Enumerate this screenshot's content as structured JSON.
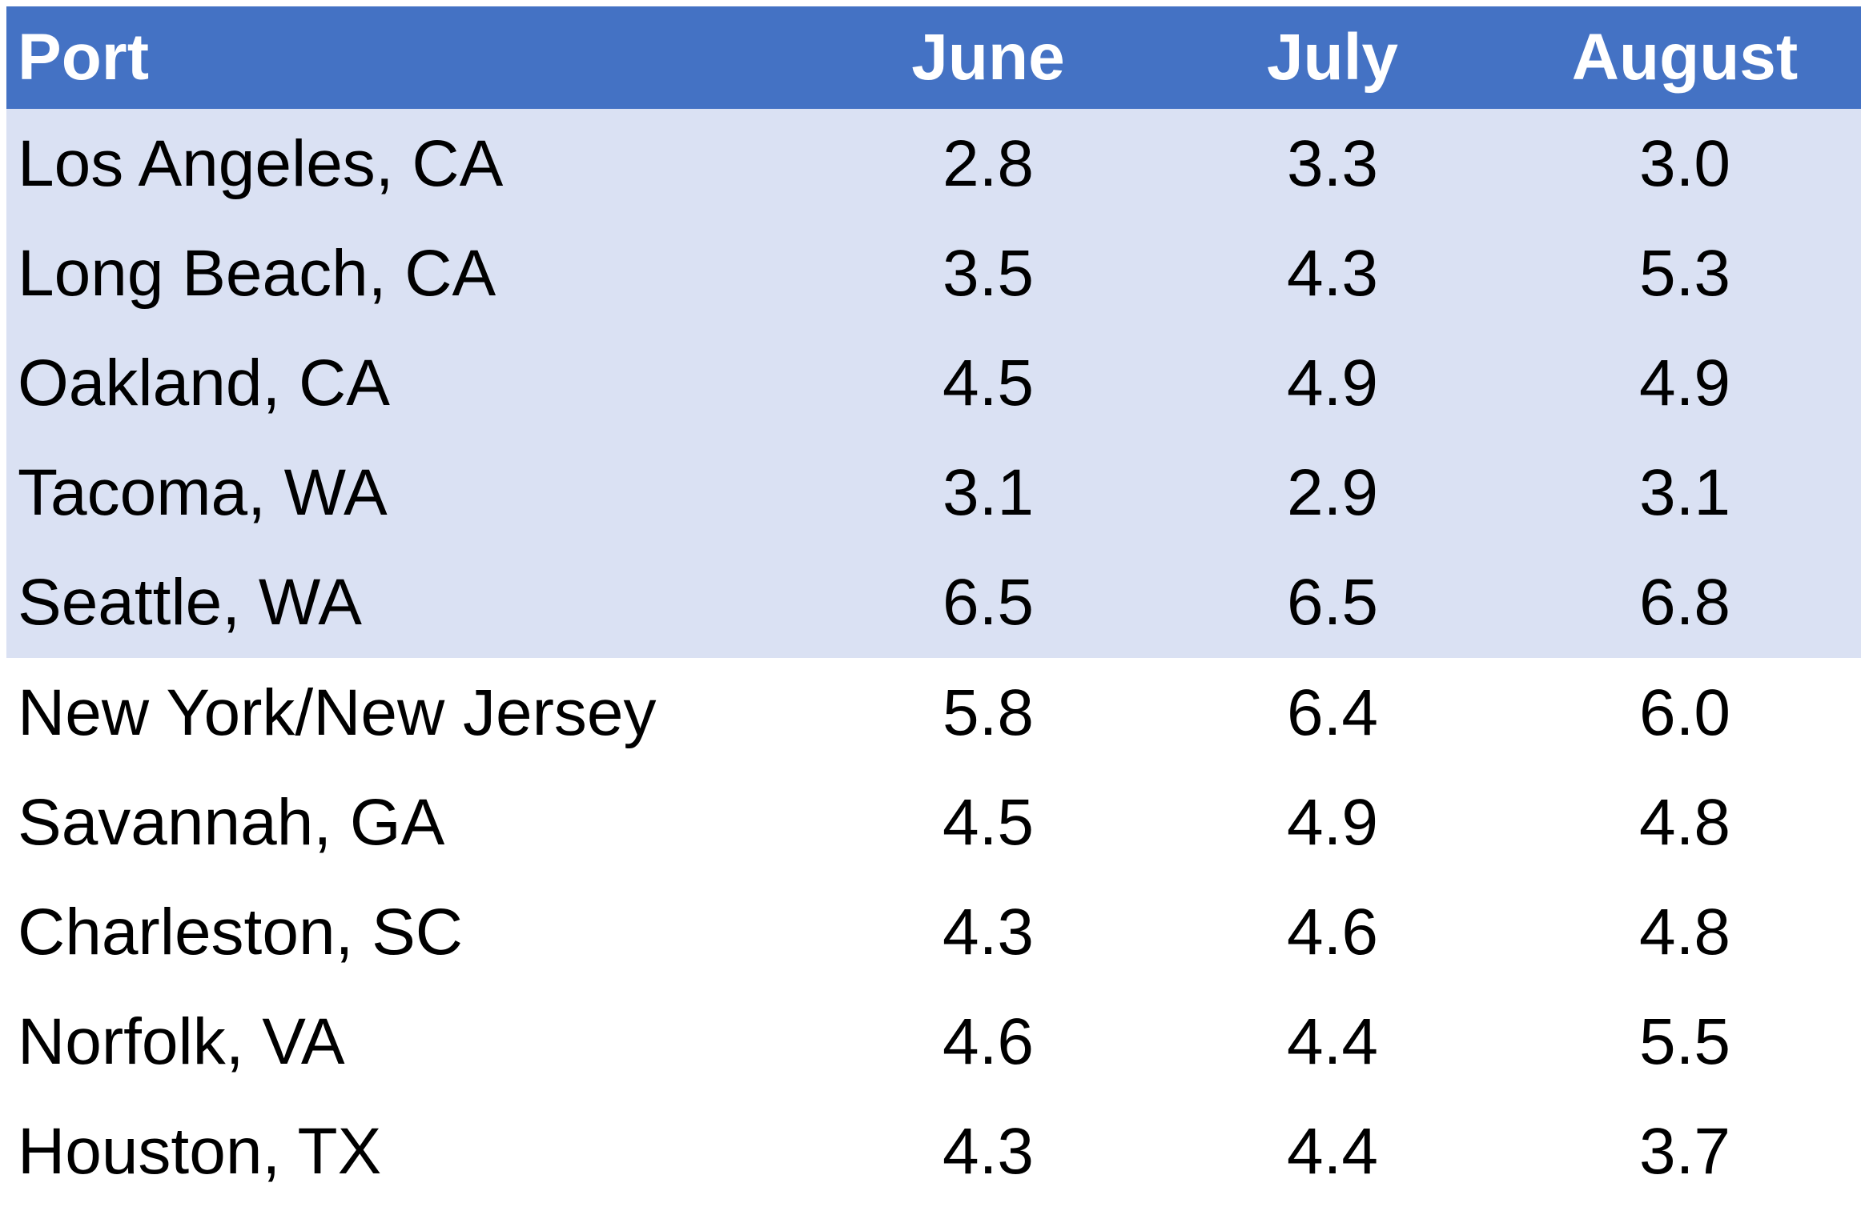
{
  "table": {
    "headers": [
      "Port",
      "June",
      "July",
      "August"
    ],
    "header_color": "#4472c4",
    "shaded_row_color": "#dae1f3",
    "rows": [
      {
        "port": "Los Angeles, CA",
        "june": "2.8",
        "july": "3.3",
        "august": "3.0",
        "shaded": true
      },
      {
        "port": "Long Beach, CA",
        "june": "3.5",
        "july": "4.3",
        "august": "5.3",
        "shaded": true
      },
      {
        "port": "Oakland, CA",
        "june": "4.5",
        "july": "4.9",
        "august": "4.9",
        "shaded": true
      },
      {
        "port": "Tacoma, WA",
        "june": "3.1",
        "july": "2.9",
        "august": "3.1",
        "shaded": true
      },
      {
        "port": "Seattle, WA",
        "june": "6.5",
        "july": "6.5",
        "august": "6.8",
        "shaded": true
      },
      {
        "port": "New York/New Jersey",
        "june": "5.8",
        "july": "6.4",
        "august": "6.0",
        "shaded": false
      },
      {
        "port": "Savannah, GA",
        "june": "4.5",
        "july": "4.9",
        "august": "4.8",
        "shaded": false
      },
      {
        "port": "Charleston, SC",
        "june": "4.3",
        "july": "4.6",
        "august": "4.8",
        "shaded": false
      },
      {
        "port": "Norfolk, VA",
        "june": "4.6",
        "july": "4.4",
        "august": "5.5",
        "shaded": false
      },
      {
        "port": "Houston, TX",
        "june": "4.3",
        "july": "4.4",
        "august": "3.7",
        "shaded": false
      }
    ]
  }
}
